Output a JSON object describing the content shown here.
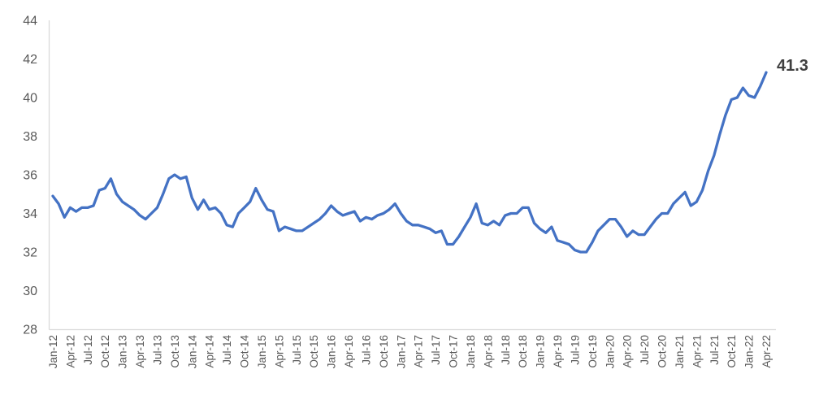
{
  "chart_data": {
    "type": "line",
    "title": "",
    "legend": "none",
    "grid": "off",
    "ylim": [
      28,
      44
    ],
    "ytick_step": 2,
    "x_tick_every": 3,
    "end_label": "41.3",
    "line_color": "#4472C4",
    "axis_color": "#D9D9D9",
    "tick_label_color": "#595959",
    "end_label_color": "#404040",
    "categories": [
      "Jan-12",
      "Feb-12",
      "Mar-12",
      "Apr-12",
      "May-12",
      "Jun-12",
      "Jul-12",
      "Aug-12",
      "Sep-12",
      "Oct-12",
      "Nov-12",
      "Dec-12",
      "Jan-13",
      "Feb-13",
      "Mar-13",
      "Apr-13",
      "May-13",
      "Jun-13",
      "Jul-13",
      "Aug-13",
      "Sep-13",
      "Oct-13",
      "Nov-13",
      "Dec-13",
      "Jan-14",
      "Feb-14",
      "Mar-14",
      "Apr-14",
      "May-14",
      "Jun-14",
      "Jul-14",
      "Aug-14",
      "Sep-14",
      "Oct-14",
      "Nov-14",
      "Dec-14",
      "Jan-15",
      "Feb-15",
      "Mar-15",
      "Apr-15",
      "May-15",
      "Jun-15",
      "Jul-15",
      "Aug-15",
      "Sep-15",
      "Oct-15",
      "Nov-15",
      "Dec-15",
      "Jan-16",
      "Feb-16",
      "Mar-16",
      "Apr-16",
      "May-16",
      "Jun-16",
      "Jul-16",
      "Aug-16",
      "Sep-16",
      "Oct-16",
      "Nov-16",
      "Dec-16",
      "Jan-17",
      "Feb-17",
      "Mar-17",
      "Apr-17",
      "May-17",
      "Jun-17",
      "Jul-17",
      "Aug-17",
      "Sep-17",
      "Oct-17",
      "Nov-17",
      "Dec-17",
      "Jan-18",
      "Feb-18",
      "Mar-18",
      "Apr-18",
      "May-18",
      "Jun-18",
      "Jul-18",
      "Aug-18",
      "Sep-18",
      "Oct-18",
      "Nov-18",
      "Dec-18",
      "Jan-19",
      "Feb-19",
      "Mar-19",
      "Apr-19",
      "May-19",
      "Jun-19",
      "Jul-19",
      "Aug-19",
      "Sep-19",
      "Oct-19",
      "Nov-19",
      "Dec-19",
      "Jan-20",
      "Feb-20",
      "Mar-20",
      "Apr-20",
      "May-20",
      "Jun-20",
      "Jul-20",
      "Aug-20",
      "Sep-20",
      "Oct-20",
      "Nov-20",
      "Dec-20",
      "Jan-21",
      "Feb-21",
      "Mar-21",
      "Apr-21",
      "May-21",
      "Jun-21",
      "Jul-21",
      "Aug-21",
      "Sep-21",
      "Oct-21",
      "Nov-21",
      "Dec-21",
      "Jan-22",
      "Feb-22",
      "Mar-22",
      "Apr-22"
    ],
    "values": [
      34.9,
      34.5,
      33.8,
      34.3,
      34.1,
      34.3,
      34.3,
      34.4,
      35.2,
      35.3,
      35.8,
      35.0,
      34.6,
      34.4,
      34.2,
      33.9,
      33.7,
      34.0,
      34.3,
      35.0,
      35.8,
      36.0,
      35.8,
      35.9,
      34.8,
      34.2,
      34.7,
      34.2,
      34.3,
      34.0,
      33.4,
      33.3,
      34.0,
      34.3,
      34.6,
      35.3,
      34.7,
      34.2,
      34.1,
      33.1,
      33.3,
      33.2,
      33.1,
      33.1,
      33.3,
      33.5,
      33.7,
      34.0,
      34.4,
      34.1,
      33.9,
      34.0,
      34.1,
      33.6,
      33.8,
      33.7,
      33.9,
      34.0,
      34.2,
      34.5,
      34.0,
      33.6,
      33.4,
      33.4,
      33.3,
      33.2,
      33.0,
      33.1,
      32.4,
      32.4,
      32.8,
      33.3,
      33.8,
      34.5,
      33.5,
      33.4,
      33.6,
      33.4,
      33.9,
      34.0,
      34.0,
      34.3,
      34.3,
      33.5,
      33.2,
      33.0,
      33.3,
      32.6,
      32.5,
      32.4,
      32.1,
      32.0,
      32.0,
      32.5,
      33.1,
      33.4,
      33.7,
      33.7,
      33.3,
      32.8,
      33.1,
      32.9,
      32.9,
      33.3,
      33.7,
      34.0,
      34.0,
      34.5,
      34.8,
      35.1,
      34.4,
      34.6,
      35.2,
      36.2,
      37.0,
      38.1,
      39.1,
      39.9,
      40.0,
      40.5,
      40.1,
      40.0,
      40.6,
      41.3
    ]
  }
}
